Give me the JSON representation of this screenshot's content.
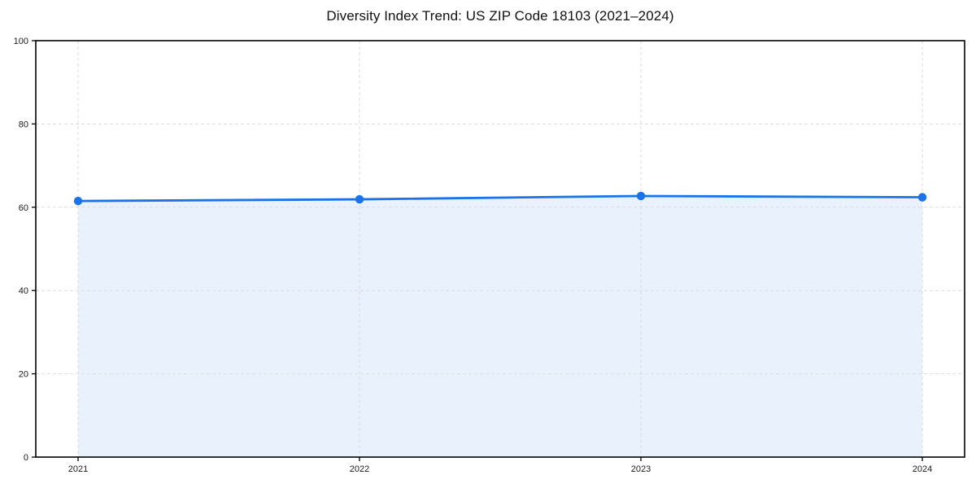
{
  "chart_data": {
    "type": "area",
    "title": "Diversity Index Trend: US ZIP Code 18103 (2021–2024)",
    "categories": [
      "2021",
      "2022",
      "2023",
      "2024"
    ],
    "series": [
      {
        "name": "Diversity Index",
        "values": [
          61.5,
          61.9,
          62.7,
          62.4
        ]
      }
    ],
    "xlabel": "",
    "ylabel": "",
    "ylim": [
      0,
      100
    ],
    "yticks": [
      0,
      20,
      40,
      60,
      80,
      100
    ],
    "grid": true,
    "grid_style": "dashed",
    "legend": false,
    "marker": "circle",
    "colors": {
      "line": "#1a73e8",
      "marker": "#1a73e8",
      "fill": "#e8f1fc",
      "grid": "#dcdcdc",
      "spine": "#000000",
      "tick": "#000000",
      "tick_label": "#1a1a1a",
      "background": "#ffffff"
    }
  }
}
